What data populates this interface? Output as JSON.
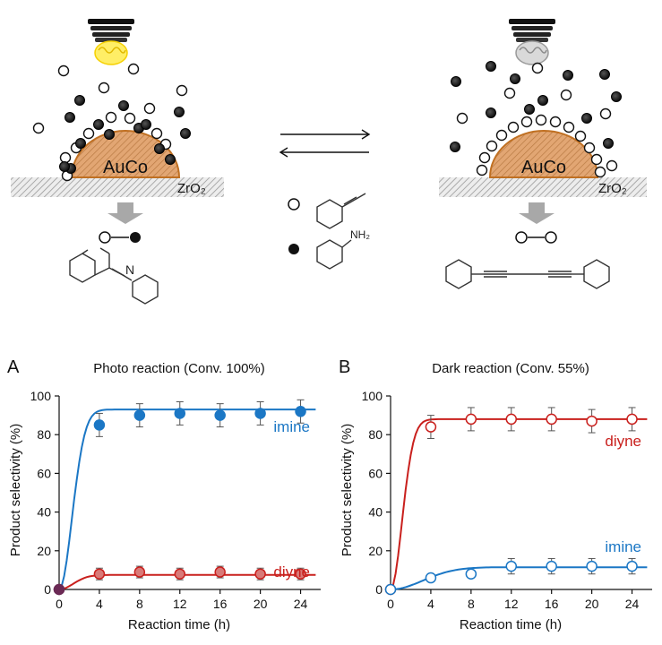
{
  "scheme": {
    "left_particle": "AuCo",
    "right_particle": "AuCo",
    "left_support": "ZrO₂",
    "right_support": "ZrO₂",
    "amine_label": "NH₂"
  },
  "colors": {
    "blue": "#1b77c5",
    "red": "#c9201d",
    "particle_fill": "#d99a62",
    "particle_edge": "#c07022"
  },
  "chart_data": [
    {
      "type": "scatter",
      "panel_label": "A",
      "title": "Photo reaction (Conv. 100%)",
      "xlabel": "Reaction time (h)",
      "ylabel": "Product selectivity (%)",
      "xlim": [
        0,
        26
      ],
      "ylim": [
        0,
        100
      ],
      "xticks": [
        "0",
        "4",
        "8",
        "12",
        "16",
        "20",
        "24"
      ],
      "yticks": [
        "0",
        "20",
        "40",
        "60",
        "80",
        "100"
      ],
      "marker": "filled",
      "series": [
        {
          "name": "imine",
          "color": "#1b77c5",
          "x": [
            0,
            4,
            8,
            12,
            16,
            20,
            24
          ],
          "y": [
            0,
            85,
            90,
            91,
            90,
            91,
            92
          ],
          "err": [
            0,
            6,
            6,
            6,
            6,
            6,
            6
          ],
          "curve_plateau": 93,
          "curve_tau": 1.8
        },
        {
          "name": "diyne",
          "color": "#c9201d",
          "x": [
            0,
            4,
            8,
            12,
            16,
            20,
            24
          ],
          "y": [
            0,
            8,
            9,
            8,
            9,
            8,
            8
          ],
          "err": [
            0,
            3,
            3,
            3,
            3,
            3,
            3
          ],
          "curve_plateau": 7.5,
          "curve_tau": 2.0
        }
      ]
    },
    {
      "type": "scatter",
      "panel_label": "B",
      "title": "Dark reaction (Conv. 55%)",
      "xlabel": "Reaction time (h)",
      "ylabel": "Product selectivity (%)",
      "xlim": [
        0,
        26
      ],
      "ylim": [
        0,
        100
      ],
      "xticks": [
        "0",
        "4",
        "8",
        "12",
        "16",
        "20",
        "24"
      ],
      "yticks": [
        "0",
        "20",
        "40",
        "60",
        "80",
        "100"
      ],
      "marker": "open",
      "series": [
        {
          "name": "diyne",
          "color": "#c9201d",
          "x": [
            0,
            4,
            8,
            12,
            16,
            20,
            24
          ],
          "y": [
            0,
            84,
            88,
            88,
            88,
            87,
            88
          ],
          "err": [
            0,
            6,
            6,
            6,
            6,
            6,
            6
          ],
          "curve_plateau": 88,
          "curve_tau": 1.6
        },
        {
          "name": "imine",
          "color": "#1b77c5",
          "x": [
            0,
            4,
            8,
            12,
            16,
            20,
            24
          ],
          "y": [
            0,
            6,
            8,
            12,
            12,
            12,
            12
          ],
          "err": [
            0,
            2,
            2,
            4,
            4,
            4,
            4
          ],
          "curve_plateau": 11.5,
          "curve_tau": 4.5
        }
      ]
    }
  ]
}
